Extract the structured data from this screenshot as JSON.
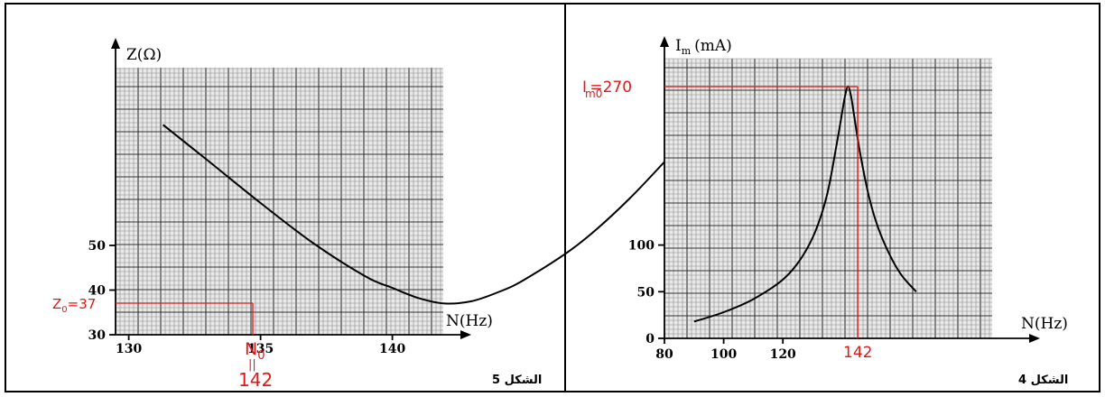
{
  "colors": {
    "annotation": "#e01818",
    "curve": "#000000",
    "grid": "#8a8a8a"
  },
  "chart_data": [
    {
      "type": "line",
      "caption": "الشكل 5",
      "ylabel": "Z(Ω)",
      "xlabel": "N(Hz)",
      "x_ticks": [
        "130",
        "135",
        "140"
      ],
      "y_ticks": [
        "30",
        "40",
        "50"
      ],
      "xlim": [
        129.5,
        153
      ],
      "ylim": [
        30,
        90
      ],
      "x": [
        131.3,
        133,
        135,
        137,
        139,
        140,
        141,
        142,
        143,
        144,
        145,
        147,
        149,
        151.3
      ],
      "y": [
        77,
        69,
        59.5,
        50.5,
        43,
        40.5,
        38.2,
        37,
        37.5,
        39.5,
        42.3,
        50,
        60.5,
        75
      ],
      "min_point": {
        "x_label": "142",
        "y_value_label": "Z",
        "y_value_sub": "0",
        "y_value_rest": "=37",
        "x_name": "N",
        "x_name_sub": "0",
        "x_eq": "||"
      }
    },
    {
      "type": "line",
      "caption": "الشكل 4",
      "ylabel_main": "I",
      "ylabel_sub": "m",
      "ylabel_unit": "(mA)",
      "xlabel": "N(Hz)",
      "x_ticks": [
        "80",
        "100",
        "120"
      ],
      "y_ticks": [
        "0",
        "50",
        "100"
      ],
      "xlim": [
        80,
        170
      ],
      "ylim": [
        0,
        290
      ],
      "x": [
        90,
        100,
        110,
        120,
        126,
        131,
        135,
        138,
        140,
        141,
        142,
        143,
        144,
        146,
        149,
        152,
        156,
        160,
        165
      ],
      "y": [
        18,
        28,
        42,
        63,
        85,
        115,
        155,
        205,
        242,
        260,
        270,
        260,
        240,
        200,
        153,
        120,
        90,
        68,
        50
      ],
      "peak_point": {
        "x_label": "142",
        "y_name": "I",
        "y_name_sub": "m0",
        "y_rest": "=270"
      }
    }
  ]
}
